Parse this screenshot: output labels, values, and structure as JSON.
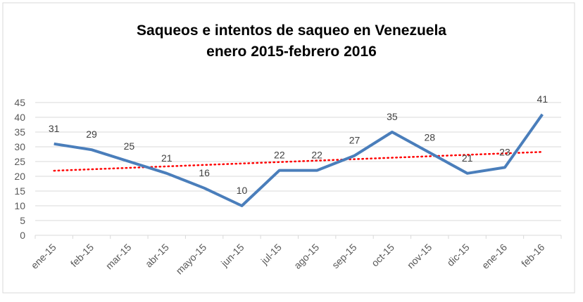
{
  "chart_data": {
    "type": "line",
    "title": [
      "Saqueos e intentos de saqueo en Venezuela",
      "enero 2015-febrero 2016"
    ],
    "xlabel": "",
    "ylabel": "",
    "categories": [
      "ene-15",
      "feb-15",
      "mar-15",
      "abr-15",
      "mayo-15",
      "jun-15",
      "jul-15",
      "ago-15",
      "sep-15",
      "oct-15",
      "nov-15",
      "dic-15",
      "ene-16",
      "feb-16"
    ],
    "series": [
      {
        "name": "Saqueos",
        "values": [
          31,
          29,
          25,
          21,
          16,
          10,
          22,
          22,
          27,
          35,
          28,
          21,
          23,
          41
        ],
        "color": "#4a7ebb"
      }
    ],
    "trendline": {
      "type": "linear",
      "style": "dotted",
      "color": "#ff0000"
    },
    "ylim": [
      0,
      45
    ],
    "yticks": [
      0,
      5,
      10,
      15,
      20,
      25,
      30,
      35,
      40,
      45
    ],
    "grid": true,
    "legend": "none"
  }
}
